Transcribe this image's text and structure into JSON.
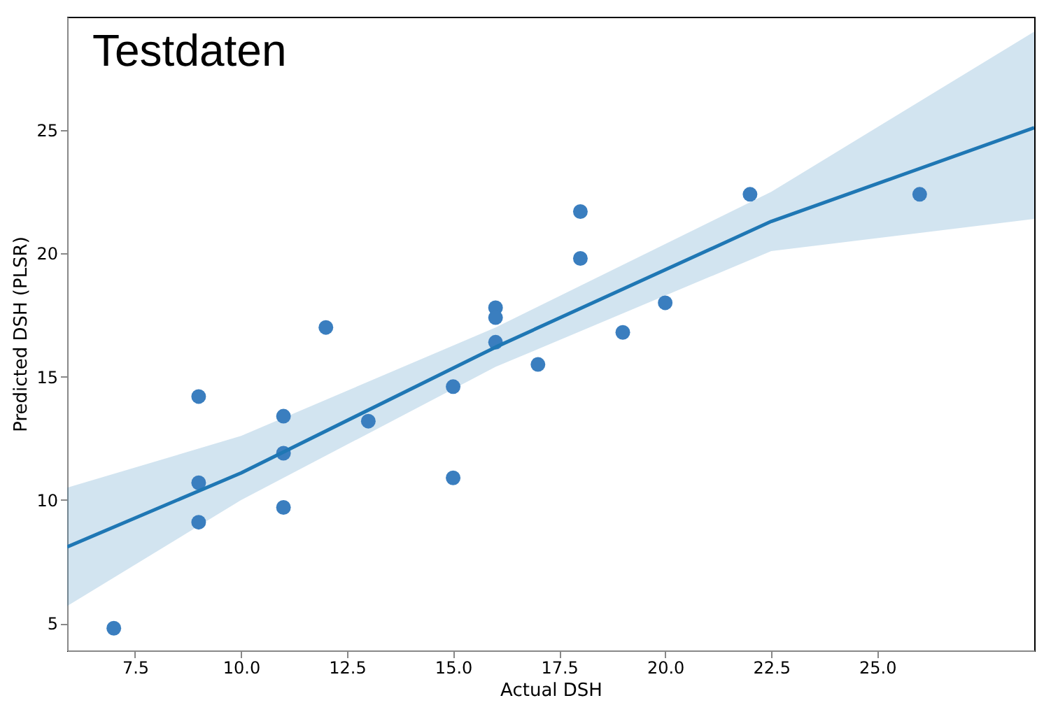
{
  "chart_data": {
    "type": "scatter",
    "xlabel": "Actual DSH",
    "ylabel": "Predicted DSH (PLSR)",
    "annotations": [
      "Testdaten"
    ],
    "xlim": [
      5.9,
      28.7
    ],
    "ylim": [
      3.9,
      29.6
    ],
    "xticks": [
      {
        "value": 7.5,
        "label": "7.5"
      },
      {
        "value": 10,
        "label": "10.0"
      },
      {
        "value": 12.5,
        "label": "12.5"
      },
      {
        "value": 15,
        "label": "15.0"
      },
      {
        "value": 17.5,
        "label": "17.5"
      },
      {
        "value": 20,
        "label": "20.0"
      },
      {
        "value": 22.5,
        "label": "22.5"
      },
      {
        "value": 25,
        "label": "25.0"
      }
    ],
    "yticks": [
      5,
      10,
      15,
      20,
      25
    ],
    "grid": false,
    "legend": false,
    "series": [
      {
        "marker": "circle",
        "color": "#3a7ebf",
        "x": [
          7,
          9,
          9,
          9,
          11,
          11,
          11,
          12,
          13,
          15,
          15,
          16,
          16,
          16,
          17,
          18,
          18,
          19,
          20,
          22,
          26
        ],
        "values": [
          4.8,
          14.2,
          10.7,
          9.1,
          13.4,
          11.9,
          9.7,
          17.0,
          13.2,
          14.6,
          10.9,
          17.8,
          17.4,
          16.4,
          15.5,
          21.7,
          19.8,
          16.8,
          18.0,
          22.4,
          22.4
        ]
      },
      {
        "type": "line",
        "color": "#1f77b4",
        "x": [
          5.9,
          10,
          16,
          22.5,
          28.7
        ],
        "values": [
          8.1,
          11.1,
          16.2,
          21.3,
          25.1
        ],
        "lower": [
          5.7,
          10.0,
          15.4,
          20.1,
          21.4
        ],
        "upper": [
          10.5,
          12.6,
          17.0,
          22.5,
          29.0
        ]
      }
    ]
  }
}
